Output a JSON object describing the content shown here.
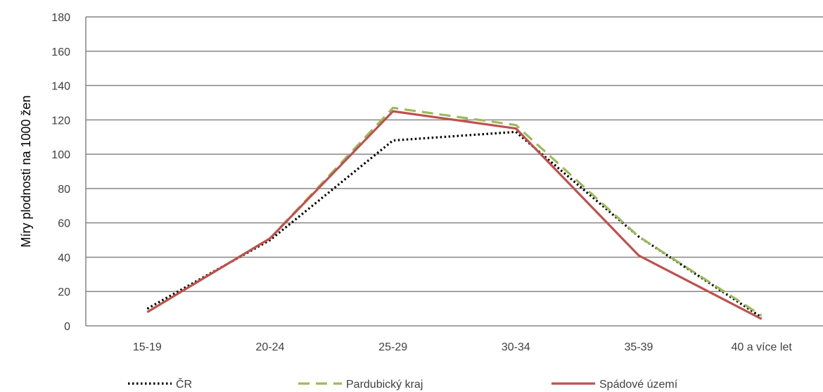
{
  "chart_data": {
    "type": "line",
    "title": "",
    "xlabel": "",
    "ylabel": "Míry plodnosti na 1000 žen",
    "categories": [
      "15-19",
      "20-24",
      "25-29",
      "30-34",
      "35-39",
      "40 a více let"
    ],
    "ylim": [
      0,
      180
    ],
    "yticks": [
      0,
      20,
      40,
      60,
      80,
      100,
      120,
      140,
      160,
      180
    ],
    "grid": true,
    "legend_position": "bottom",
    "series": [
      {
        "name": "ČR",
        "values": [
          10,
          50,
          108,
          113,
          52,
          5
        ],
        "color": "#000000",
        "style": "dotted"
      },
      {
        "name": "Pardubický kraj",
        "values": [
          8,
          51,
          127,
          117,
          52,
          6
        ],
        "color": "#9BBB59",
        "style": "dashed"
      },
      {
        "name": "Spádové území",
        "values": [
          8,
          51,
          125,
          115,
          41,
          4
        ],
        "color": "#C0504D",
        "style": "solid"
      }
    ]
  }
}
